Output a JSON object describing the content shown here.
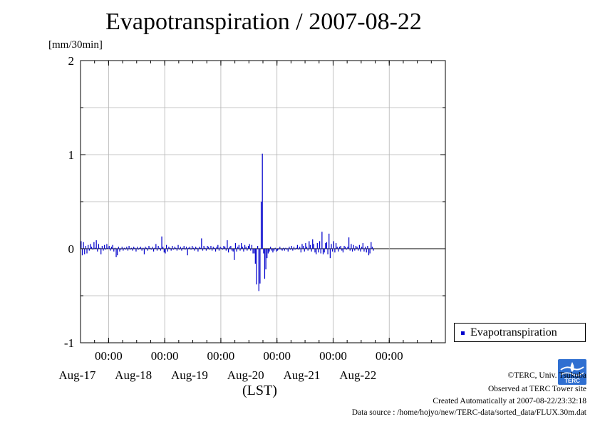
{
  "header": {
    "title": "Evapotranspiration / 2007-08-22",
    "y_unit": "[mm/30min]"
  },
  "footer": {
    "x_unit": "(LST)",
    "credit": "©TERC, Univ. Tsukuba",
    "observed": "Observed at TERC Tower site",
    "created": "Created Automatically at 2007-08-22/23:32:18",
    "source": "Data source : /home/hojyo/new/TERC-data/sorted_data/FLUX.30m.dat",
    "logo_text": "TERC"
  },
  "chart_data": {
    "type": "bar",
    "title": "Evapotranspiration / 2007-08-22",
    "ylabel": "[mm/30min]",
    "xlabel": "(LST)",
    "ylim": [
      -1,
      2
    ],
    "yticks": [
      -1,
      0,
      1,
      2
    ],
    "x_start": "2007-08-16T12:00",
    "x_end": "2007-08-22T24:00",
    "step": "30min",
    "xticks": [
      "Aug-17 00:00",
      "Aug-18 00:00",
      "Aug-19 00:00",
      "Aug-20 00:00",
      "Aug-21 00:00",
      "Aug-22 00:00"
    ],
    "xtick_time_label": "00:00",
    "xtick_date_labels": [
      "Aug-17",
      "Aug-18",
      "Aug-19",
      "Aug-20",
      "Aug-21",
      "Aug-22"
    ],
    "grid": true,
    "legend": "right",
    "color": "#0000cc",
    "series": [
      {
        "name": "Evapotranspiration",
        "values": [
          0.08,
          -0.07,
          0.07,
          -0.06,
          0.03,
          -0.05,
          0.04,
          -0.02,
          0.05,
          0.02,
          -0.01,
          0.07,
          0.01,
          0.09,
          -0.03,
          0.05,
          0.01,
          -0.06,
          0.03,
          -0.02,
          0.04,
          -0.01,
          0.05,
          0.01,
          0.03,
          -0.02,
          0.02,
          0.04,
          -0.03,
          0.01,
          -0.09,
          -0.07,
          0.02,
          -0.03,
          -0.01,
          0.02,
          -0.02,
          0.01,
          -0.01,
          0.02,
          -0.02,
          0.03,
          -0.01,
          0.01,
          -0.02,
          0.02,
          0.01,
          -0.03,
          0.02,
          -0.01,
          0.01,
          0.02,
          -0.02,
          0.01,
          -0.06,
          0.02,
          0.01,
          -0.02,
          0.03,
          0.01,
          -0.01,
          0.02,
          -0.03,
          0.01,
          0.05,
          -0.02,
          0.03,
          0.01,
          -0.02,
          0.13,
          0.02,
          -0.04,
          -0.05,
          0.04,
          -0.03,
          0.02,
          0.01,
          -0.02,
          0.03,
          -0.01,
          0.02,
          0.01,
          -0.02,
          0.04,
          -0.01,
          0.02,
          -0.02,
          0.01,
          0.03,
          -0.01,
          0.02,
          -0.07,
          0.01,
          0.02,
          -0.01,
          0.03,
          0.01,
          -0.02,
          0.02,
          0.01,
          -0.03,
          0.02,
          0.01,
          0.11,
          -0.02,
          0.03,
          0.01,
          -0.02,
          0.03,
          0.02,
          -0.01,
          0.03,
          -0.02,
          0.02,
          0.01,
          -0.03,
          0.02,
          0.04,
          -0.02,
          0.02,
          0.01,
          -0.01,
          0.03,
          0.02,
          -0.02,
          0.09,
          -0.04,
          0.02,
          0.03,
          -0.02,
          -0.03,
          -0.12,
          0.06,
          -0.03,
          0.02,
          0.04,
          -0.02,
          0.06,
          0.02,
          -0.03,
          0.04,
          0.02,
          -0.02,
          0.03,
          0.05,
          -0.02,
          0.04,
          -0.05,
          -0.05,
          -0.16,
          -0.38,
          0.03,
          -0.45,
          -0.37,
          0.5,
          1.01,
          -0.05,
          -0.32,
          -0.22,
          -0.1,
          -0.05,
          -0.03,
          0.02,
          -0.02,
          -0.04,
          -0.02,
          0.01,
          -0.03,
          -0.02,
          -0.01,
          0.02,
          -0.01,
          -0.02,
          0.01,
          -0.02,
          0.01,
          -0.01,
          -0.03,
          0.02,
          -0.01,
          0.03,
          -0.02,
          0.02,
          -0.01,
          0.01,
          0.04,
          -0.01,
          0.02,
          -0.04,
          0.05,
          0.03,
          -0.03,
          0.06,
          0.02,
          -0.02,
          0.08,
          0.04,
          -0.03,
          0.1,
          0.05,
          -0.04,
          -0.06,
          0.06,
          -0.04,
          0.08,
          -0.05,
          0.18,
          -0.06,
          -0.04,
          0.06,
          0.07,
          -0.06,
          0.16,
          -0.1,
          0.05,
          -0.03,
          0.08,
          -0.04,
          0.06,
          0.02,
          -0.03,
          0.02,
          0.03,
          -0.02,
          -0.04,
          0.03,
          0.02,
          -0.01,
          0.02,
          0.12,
          -0.02,
          0.05,
          -0.03,
          0.04,
          -0.02,
          0.03,
          0.02,
          -0.02,
          0.04,
          -0.03,
          0.02,
          0.06,
          -0.03,
          0.02,
          -0.04,
          0.03,
          -0.07,
          -0.05,
          0.07,
          0.02,
          -0.02
        ]
      }
    ]
  }
}
